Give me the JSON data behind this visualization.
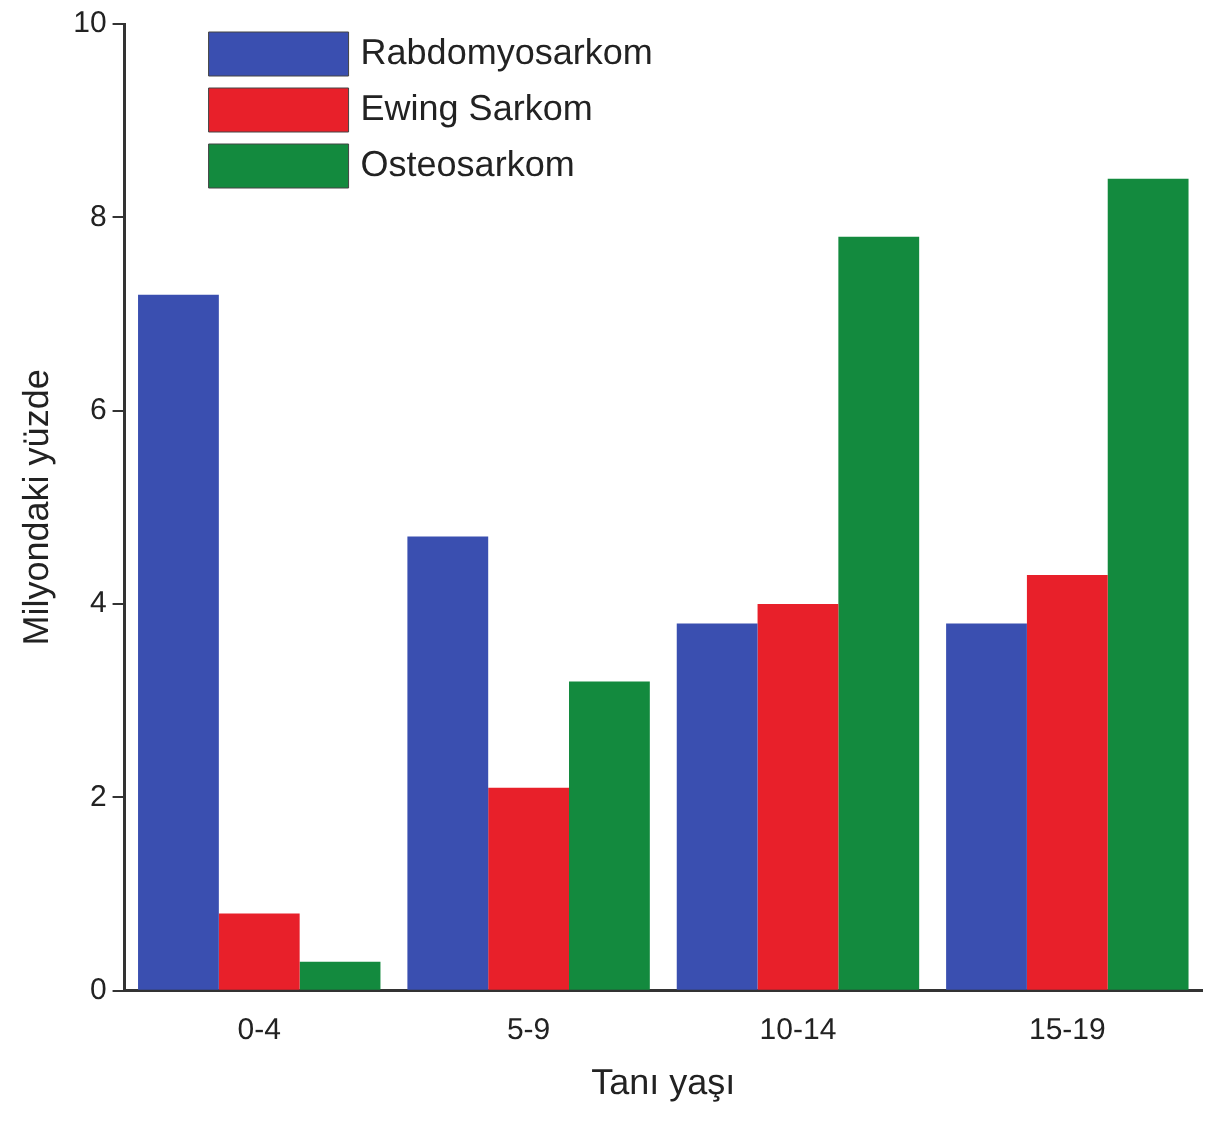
{
  "chart_data": {
    "type": "bar",
    "xlabel": "Tanı yaşı",
    "ylabel": "Milyondaki yüzde",
    "categories": [
      "0-4",
      "5-9",
      "10-14",
      "15-19"
    ],
    "series": [
      {
        "name": "Rabdomyosarkom",
        "color": "#3a4fb0",
        "values": [
          7.2,
          4.7,
          3.8,
          3.8
        ]
      },
      {
        "name": "Ewing Sarkom",
        "color": "#e8202a",
        "values": [
          0.8,
          2.1,
          4.0,
          4.3
        ]
      },
      {
        "name": "Osteosarkom",
        "color": "#138a3e",
        "values": [
          0.3,
          3.2,
          7.8,
          8.4
        ]
      }
    ],
    "ylim": [
      0,
      10
    ],
    "yticks": [
      0,
      2,
      4,
      6,
      8,
      10
    ],
    "grid": false,
    "legend": "top left"
  }
}
